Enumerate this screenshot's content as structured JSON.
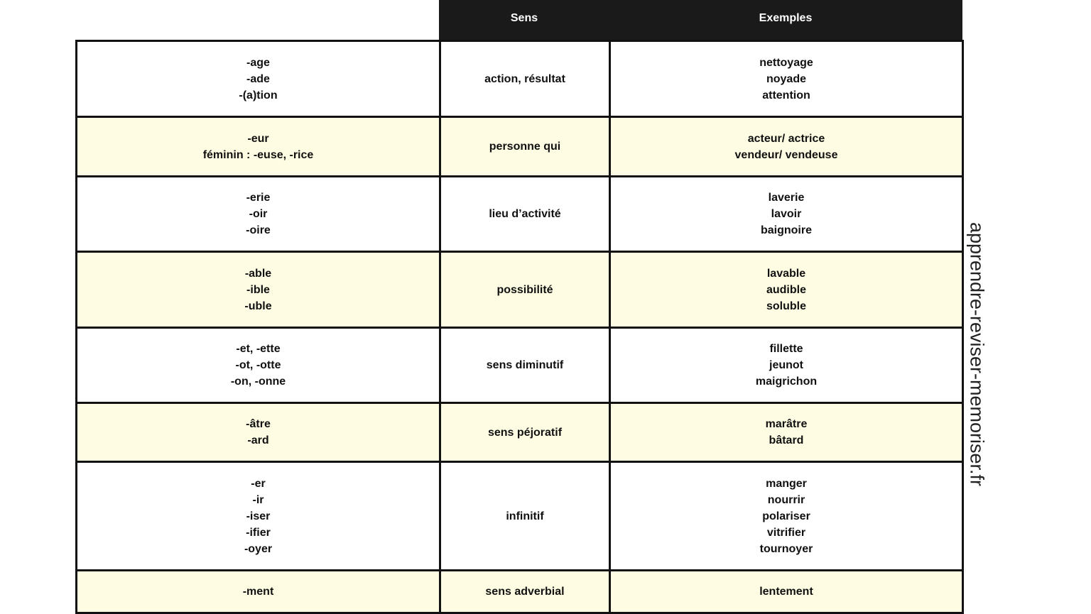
{
  "header": {
    "col1": "",
    "col2": "Sens",
    "col3": "Exemples"
  },
  "rows": [
    {
      "suffixes": [
        "-age",
        "-ade",
        "-(a)tion"
      ],
      "sens": "action, résultat",
      "exemples": [
        "nettoyage",
        "noyade",
        "attention"
      ]
    },
    {
      "suffixes": [
        "-eur",
        "féminin : -euse, -rice"
      ],
      "sens": "personne qui",
      "exemples": [
        "acteur/ actrice",
        "vendeur/ vendeuse"
      ]
    },
    {
      "suffixes": [
        "-erie",
        "-oir",
        "-oire"
      ],
      "sens": "lieu d’activité",
      "exemples": [
        "laverie",
        "lavoir",
        "baignoire"
      ]
    },
    {
      "suffixes": [
        "-able",
        "-ible",
        "-uble"
      ],
      "sens": "possibilité",
      "exemples": [
        "lavable",
        "audible",
        "soluble"
      ]
    },
    {
      "suffixes": [
        "-et, -ette",
        "-ot, -otte",
        "-on, -onne"
      ],
      "sens": "sens diminutif",
      "exemples": [
        "fillette",
        "jeunot",
        "maigrichon"
      ]
    },
    {
      "suffixes": [
        "-âtre",
        "-ard"
      ],
      "sens": "sens péjoratif",
      "exemples": [
        "marâtre",
        "bâtard"
      ]
    },
    {
      "suffixes": [
        "-er",
        "-ir",
        "-iser",
        "-ifier",
        "-oyer"
      ],
      "sens": "infinitif",
      "exemples": [
        "manger",
        "nourrir",
        "polariser",
        "vitrifier",
        "tournoyer"
      ]
    },
    {
      "suffixes": [
        "-ment"
      ],
      "sens": "sens adverbial",
      "exemples": [
        "lentement"
      ]
    }
  ],
  "watermark": "apprendre-reviser-memoriser.fr",
  "colors": {
    "header_bg": "#1a1a1a",
    "alt_row": "#fefde3",
    "border": "#111111"
  }
}
